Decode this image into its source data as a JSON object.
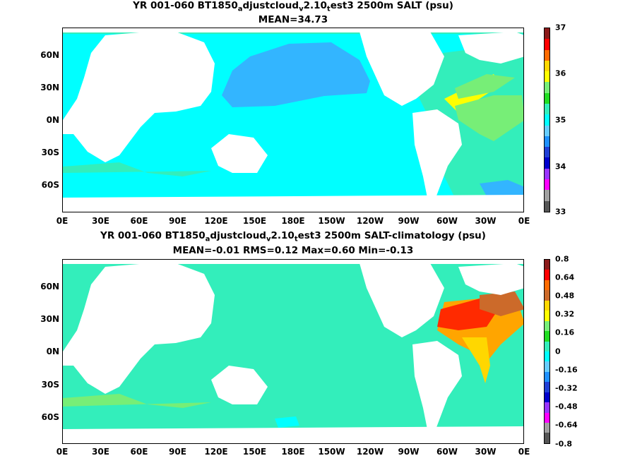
{
  "panel_top": {
    "title_pre": "YR 001-060 BT1850",
    "sub1": "a",
    "mid1": "djustcloud",
    "sub2": "v",
    "mid2": "2.10",
    "sub3": "t",
    "title_post": "est3 2500m SALT (psu)",
    "stats": "MEAN=34.73",
    "colorbar_labels": [
      "37",
      "36",
      "35",
      "34",
      "33"
    ],
    "colorbar_colors": [
      "#8b1a1a",
      "#ff0000",
      "#ff6a00",
      "#ffd700",
      "#ffff00",
      "#77ee77",
      "#22dd22",
      "#33eebb",
      "#00ffff",
      "#66ccff",
      "#1e90ff",
      "#1f3fd6",
      "#0000cc",
      "#9933ff",
      "#ff00ff",
      "#a0a0a0",
      "#555555"
    ]
  },
  "panel_bottom": {
    "title_pre": "YR 001-060 BT1850",
    "sub1": "a",
    "mid1": "djustcloud",
    "sub2": "v",
    "mid2": "2.10",
    "sub3": "t",
    "title_post": "est3 2500m SALT-climatology (psu)",
    "stats": "MEAN=-0.01   RMS=0.12   Max=0.60   Min=-0.13",
    "colorbar_labels": [
      "0.8",
      "0.64",
      "0.48",
      "0.32",
      "0.16",
      "0",
      "-0.16",
      "-0.32",
      "-0.48",
      "-0.64",
      "-0.8"
    ],
    "colorbar_colors": [
      "#8b1a1a",
      "#ff0000",
      "#ff6a00",
      "#cc6a2a",
      "#ffd700",
      "#ffff00",
      "#77ee77",
      "#22dd22",
      "#33eebb",
      "#00ffff",
      "#66ccff",
      "#1e90ff",
      "#1f3fd6",
      "#0000cc",
      "#9933ff",
      "#ff00ff",
      "#a0a0a0",
      "#555555"
    ]
  },
  "x_ticks": [
    "0E",
    "30E",
    "60E",
    "90E",
    "120E",
    "150E",
    "180E",
    "150W",
    "120W",
    "90W",
    "60W",
    "30W",
    "0E"
  ],
  "y_ticks": [
    "60N",
    "30N",
    "0N",
    "30S",
    "60S"
  ],
  "colors": {
    "ocean_top": "#00ffff",
    "pacific_top": "#33b5ff",
    "southern_top": "#33eebb",
    "atlantic_top": "#33eebb",
    "ocean_bottom": "#33eebb",
    "land": "#ffffff",
    "high_anom": "#ff2a00",
    "mid_anom": "#ffa500"
  }
}
